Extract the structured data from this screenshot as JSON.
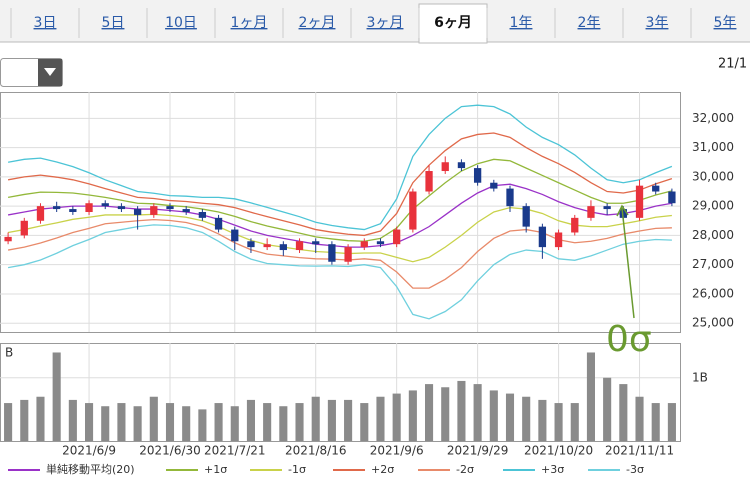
{
  "tabs": {
    "items": [
      "3日",
      "5日",
      "10日",
      "1ヶ月",
      "2ヶ月",
      "3ヶ月",
      "6ヶ月",
      "1年",
      "2年",
      "3年",
      "5年"
    ],
    "active": 6
  },
  "period_label": "21/1",
  "chart_data": [
    {
      "type": "candlestick",
      "categories": [
        null,
        null,
        null,
        null,
        null,
        null,
        null,
        null,
        null,
        null,
        null,
        null,
        null,
        null,
        null,
        null,
        null,
        null,
        null,
        null,
        null,
        null,
        null,
        null,
        null,
        null,
        null,
        null,
        null,
        null,
        null,
        null,
        null,
        null,
        null,
        null,
        null,
        null,
        null,
        null,
        null,
        null
      ],
      "open": [
        27800,
        28000,
        28500,
        29000,
        28900,
        28800,
        29100,
        29000,
        28900,
        28700,
        29000,
        28900,
        28800,
        28600,
        28200,
        27800,
        27600,
        27700,
        27500,
        27800,
        27700,
        27100,
        27600,
        27800,
        27700,
        28200,
        29500,
        30200,
        30500,
        30300,
        29800,
        29600,
        29000,
        28300,
        27600,
        28100,
        28600,
        29000,
        28900,
        28600,
        29700,
        29500
      ],
      "high": [
        28100,
        28600,
        29100,
        29150,
        29000,
        29200,
        29200,
        29100,
        29000,
        29100,
        29100,
        29000,
        28900,
        28700,
        28300,
        27900,
        27900,
        27800,
        27900,
        27900,
        27800,
        27700,
        27900,
        27900,
        28300,
        29600,
        30400,
        30700,
        30600,
        30400,
        29900,
        29700,
        29100,
        28400,
        28200,
        28700,
        29200,
        29100,
        29000,
        29900,
        29800,
        29600
      ],
      "low": [
        27700,
        27900,
        28400,
        28800,
        28700,
        28700,
        28900,
        28800,
        28200,
        28600,
        28800,
        28700,
        28500,
        28100,
        27500,
        27400,
        27500,
        27300,
        27400,
        27400,
        27000,
        27000,
        27500,
        27600,
        27600,
        28100,
        29400,
        30100,
        30200,
        29700,
        29500,
        28800,
        28100,
        27200,
        27500,
        28000,
        28500,
        28700,
        28500,
        28500,
        29400,
        29000
      ],
      "close": [
        27950,
        28500,
        29000,
        28900,
        28800,
        29100,
        29000,
        28900,
        28700,
        29000,
        28900,
        28800,
        28600,
        28200,
        27800,
        27600,
        27700,
        27500,
        27800,
        27700,
        27100,
        27600,
        27800,
        27700,
        28200,
        29500,
        30200,
        30500,
        30300,
        29800,
        29600,
        29000,
        28300,
        27600,
        28100,
        28600,
        29000,
        28900,
        28600,
        29700,
        29500,
        29100
      ],
      "up_color": "#e8323c",
      "down_color": "#1a3a8c",
      "series": [
        {
          "name": "単純移動平均(20)",
          "color": "#9a32c8",
          "values": [
            28700,
            28800,
            28900,
            28950,
            29000,
            29000,
            29000,
            28950,
            28900,
            28900,
            28850,
            28800,
            28700,
            28550,
            28350,
            28150,
            28000,
            27900,
            27800,
            27700,
            27650,
            27600,
            27600,
            27650,
            27750,
            28000,
            28300,
            28700,
            29100,
            29450,
            29700,
            29750,
            29600,
            29400,
            29150,
            28950,
            28800,
            28700,
            28750,
            28850,
            29000,
            29100
          ]
        },
        {
          "name": "+1σ",
          "color": "#93b83a",
          "values": [
            29300,
            29400,
            29480,
            29470,
            29450,
            29380,
            29300,
            29200,
            29100,
            29080,
            29020,
            28980,
            28900,
            28800,
            28650,
            28470,
            28320,
            28200,
            28080,
            27950,
            27880,
            27820,
            27800,
            27900,
            28250,
            28900,
            29350,
            29800,
            30200,
            30450,
            30600,
            30550,
            30300,
            30050,
            29800,
            29550,
            29300,
            29100,
            29100,
            29200,
            29380,
            29520
          ]
        },
        {
          "name": "-1σ",
          "color": "#c9d24a",
          "values": [
            28100,
            28200,
            28320,
            28430,
            28550,
            28620,
            28700,
            28700,
            28700,
            28720,
            28680,
            28620,
            28500,
            28300,
            28050,
            27830,
            27680,
            27600,
            27520,
            27450,
            27420,
            27380,
            27400,
            27400,
            27250,
            27100,
            27250,
            27600,
            28000,
            28450,
            28800,
            28950,
            28900,
            28750,
            28500,
            28350,
            28300,
            28300,
            28400,
            28500,
            28620,
            28680
          ]
        },
        {
          "name": "+2σ",
          "color": "#e0694a",
          "values": [
            29900,
            30000,
            30060,
            29990,
            29900,
            29760,
            29600,
            29450,
            29300,
            29260,
            29190,
            29160,
            29100,
            29050,
            28950,
            28790,
            28640,
            28500,
            28360,
            28200,
            28110,
            28040,
            28000,
            28150,
            28750,
            29800,
            30400,
            30900,
            31300,
            31450,
            31500,
            31350,
            31000,
            30700,
            30450,
            30150,
            29800,
            29500,
            29450,
            29550,
            29760,
            29940
          ]
        },
        {
          "name": "-2σ",
          "color": "#e88a6a",
          "values": [
            27500,
            27600,
            27740,
            27910,
            28100,
            28240,
            28400,
            28450,
            28500,
            28540,
            28510,
            28440,
            28300,
            28050,
            27750,
            27510,
            27360,
            27300,
            27240,
            27200,
            27190,
            27160,
            27200,
            27150,
            26750,
            26200,
            26200,
            26500,
            26900,
            27450,
            27900,
            28150,
            28200,
            28100,
            27850,
            27750,
            27800,
            27900,
            28050,
            28150,
            28240,
            28260
          ]
        },
        {
          "name": "+3σ",
          "color": "#4cc4d6",
          "values": [
            30500,
            30600,
            30640,
            30510,
            30350,
            30140,
            29900,
            29700,
            29500,
            29440,
            29360,
            29340,
            29300,
            29300,
            29250,
            29110,
            28960,
            28800,
            28640,
            28450,
            28340,
            28260,
            28200,
            28400,
            29250,
            30700,
            31450,
            32000,
            32400,
            32450,
            32400,
            32150,
            31700,
            31350,
            31100,
            30750,
            30300,
            29900,
            29800,
            29900,
            30140,
            30360
          ]
        },
        {
          "name": "-3σ",
          "color": "#6fd0de",
          "values": [
            26900,
            27000,
            27160,
            27390,
            27650,
            27860,
            28100,
            28200,
            28300,
            28360,
            28340,
            28260,
            28100,
            27800,
            27450,
            27190,
            27040,
            27000,
            26960,
            26950,
            26960,
            26940,
            27000,
            26900,
            26250,
            25300,
            25150,
            25400,
            25800,
            26450,
            27000,
            27350,
            27500,
            27450,
            27200,
            27150,
            27300,
            27500,
            27700,
            27800,
            27860,
            27840
          ]
        }
      ],
      "ylim": [
        24700,
        32900
      ],
      "yticks": [
        {
          "value": 25000,
          "label": "25,000"
        },
        {
          "value": 26000,
          "label": "26,000"
        },
        {
          "value": 27000,
          "label": "27,000"
        },
        {
          "value": 28000,
          "label": "28,000"
        },
        {
          "value": 29000,
          "label": "29,000"
        },
        {
          "value": 30000,
          "label": "30,000"
        },
        {
          "value": 31000,
          "label": "31,000"
        },
        {
          "value": 32000,
          "label": "32,000"
        }
      ],
      "annotation": "0σ",
      "annotation_color": "#6a9a30",
      "grid": true
    },
    {
      "type": "bar",
      "ylabel": "B",
      "values": [
        600000000,
        650000000,
        700000000,
        1400000000,
        650000000,
        600000000,
        550000000,
        600000000,
        550000000,
        700000000,
        600000000,
        550000000,
        500000000,
        600000000,
        550000000,
        650000000,
        600000000,
        550000000,
        600000000,
        700000000,
        650000000,
        650000000,
        600000000,
        700000000,
        750000000,
        800000000,
        900000000,
        850000000,
        950000000,
        900000000,
        800000000,
        750000000,
        700000000,
        650000000,
        600000000,
        600000000,
        1400000000,
        1000000000,
        900000000,
        700000000,
        600000000,
        600000000
      ],
      "color": "#8a8a8a",
      "ylim": [
        0,
        1550000000
      ],
      "yticks": [
        {
          "value": 1000000000,
          "label": "1B"
        }
      ],
      "xlim": [
        -0.5,
        41.5
      ],
      "xticks": [
        {
          "value": 5,
          "label": "2021/6/9"
        },
        {
          "value": 10,
          "label": "2021/6/30"
        },
        {
          "value": 14,
          "label": "2021/7/21"
        },
        {
          "value": 19,
          "label": "2021/8/16"
        },
        {
          "value": 24,
          "label": "2021/9/6"
        },
        {
          "value": 29,
          "label": "2021/9/29"
        },
        {
          "value": 34,
          "label": "2021/10/20"
        },
        {
          "value": 39,
          "label": "2021/11/11"
        }
      ],
      "grid": true
    }
  ]
}
